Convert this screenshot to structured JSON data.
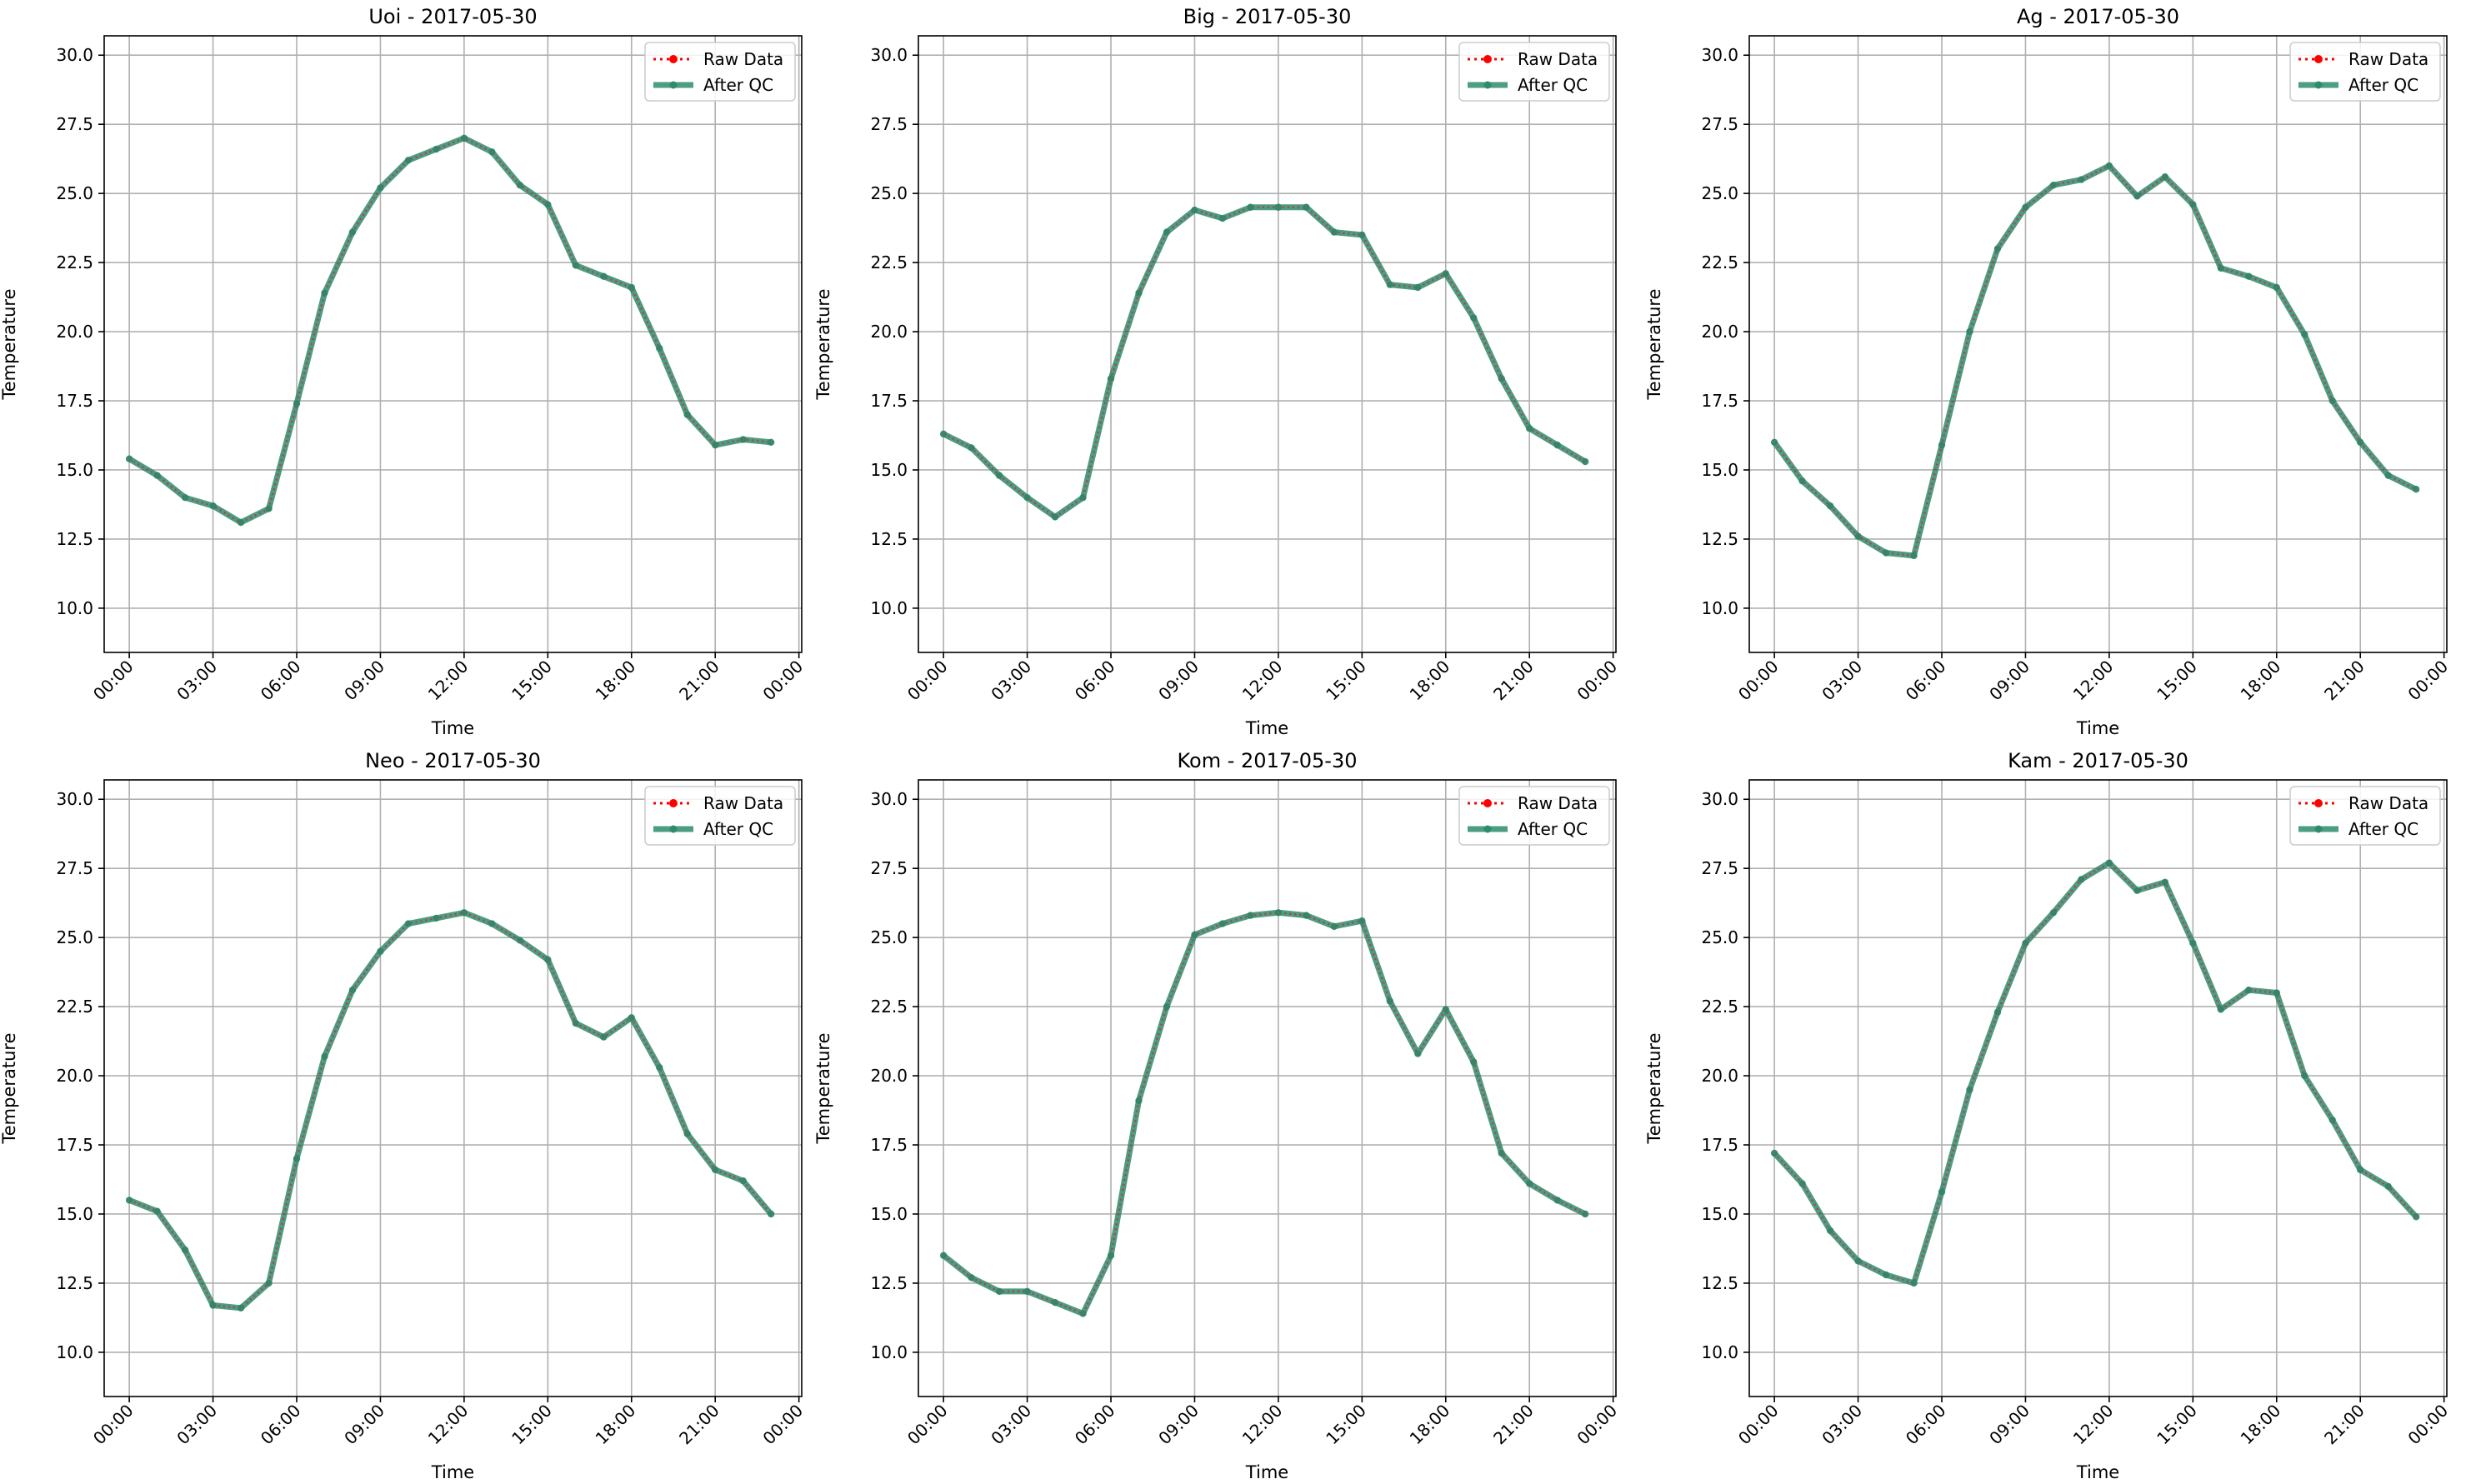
{
  "figure": {
    "background": "#ffffff"
  },
  "legend_labels": {
    "raw": "Raw Data",
    "qc": "After QC"
  },
  "colors": {
    "raw": "#ff0000",
    "qc": "#2e8b6e",
    "grid": "#b0b0b0",
    "axis": "#000000"
  },
  "chart_data": [
    {
      "type": "line",
      "title": "Uoi - 2017-05-30",
      "xlabel": "Time",
      "ylabel": "Temperature",
      "xticks": [
        "00:00",
        "03:00",
        "06:00",
        "09:00",
        "12:00",
        "15:00",
        "18:00",
        "21:00",
        "00:00"
      ],
      "yticks": [
        "10.0",
        "12.5",
        "15.0",
        "17.5",
        "20.0",
        "22.5",
        "25.0",
        "27.5",
        "30.0"
      ],
      "ylim": [
        8.4,
        30.7
      ],
      "xlim_hours": [
        -0.9,
        24.1
      ],
      "grid": true,
      "legend": "top-right",
      "x_hours": [
        0,
        1,
        2,
        3,
        4,
        5,
        6,
        7,
        8,
        9,
        10,
        11,
        12,
        13,
        14,
        15,
        16,
        17,
        18,
        19,
        20,
        21,
        22,
        23
      ],
      "series": [
        {
          "name": "Raw Data",
          "values": [
            15.4,
            14.8,
            14.0,
            13.7,
            13.1,
            13.6,
            17.4,
            21.4,
            23.6,
            25.2,
            26.2,
            26.6,
            27.0,
            26.5,
            25.3,
            24.6,
            22.4,
            22.0,
            21.6,
            19.4,
            17.0,
            15.9,
            16.1,
            16.0
          ]
        },
        {
          "name": "After QC",
          "values": [
            15.4,
            14.8,
            14.0,
            13.7,
            13.1,
            13.6,
            17.4,
            21.4,
            23.6,
            25.2,
            26.2,
            26.6,
            27.0,
            26.5,
            25.3,
            24.6,
            22.4,
            22.0,
            21.6,
            19.4,
            17.0,
            15.9,
            16.1,
            16.0
          ]
        }
      ]
    },
    {
      "type": "line",
      "title": "Big - 2017-05-30",
      "xlabel": "Time",
      "ylabel": "Temperature",
      "xticks": [
        "00:00",
        "03:00",
        "06:00",
        "09:00",
        "12:00",
        "15:00",
        "18:00",
        "21:00",
        "00:00"
      ],
      "yticks": [
        "10.0",
        "12.5",
        "15.0",
        "17.5",
        "20.0",
        "22.5",
        "25.0",
        "27.5",
        "30.0"
      ],
      "ylim": [
        8.4,
        30.7
      ],
      "xlim_hours": [
        -0.9,
        24.1
      ],
      "grid": true,
      "legend": "top-right",
      "x_hours": [
        0,
        1,
        2,
        3,
        4,
        5,
        6,
        7,
        8,
        9,
        10,
        11,
        12,
        13,
        14,
        15,
        16,
        17,
        18,
        19,
        20,
        21,
        22,
        23
      ],
      "series": [
        {
          "name": "Raw Data",
          "values": [
            16.3,
            15.8,
            14.8,
            14.0,
            13.3,
            14.0,
            18.3,
            21.4,
            23.6,
            24.4,
            24.1,
            24.5,
            24.5,
            24.5,
            23.6,
            23.5,
            21.7,
            21.6,
            22.1,
            20.5,
            18.3,
            16.5,
            15.9,
            15.3
          ]
        },
        {
          "name": "After QC",
          "values": [
            16.3,
            15.8,
            14.8,
            14.0,
            13.3,
            14.0,
            18.3,
            21.4,
            23.6,
            24.4,
            24.1,
            24.5,
            24.5,
            24.5,
            23.6,
            23.5,
            21.7,
            21.6,
            22.1,
            20.5,
            18.3,
            16.5,
            15.9,
            15.3
          ]
        }
      ]
    },
    {
      "type": "line",
      "title": "Ag - 2017-05-30",
      "xlabel": "Time",
      "ylabel": "Temperature",
      "xticks": [
        "00:00",
        "03:00",
        "06:00",
        "09:00",
        "12:00",
        "15:00",
        "18:00",
        "21:00",
        "00:00"
      ],
      "yticks": [
        "10.0",
        "12.5",
        "15.0",
        "17.5",
        "20.0",
        "22.5",
        "25.0",
        "27.5",
        "30.0"
      ],
      "ylim": [
        8.4,
        30.7
      ],
      "xlim_hours": [
        -0.9,
        24.1
      ],
      "grid": true,
      "legend": "top-right",
      "x_hours": [
        0,
        1,
        2,
        3,
        4,
        5,
        6,
        7,
        8,
        9,
        10,
        11,
        12,
        13,
        14,
        15,
        16,
        17,
        18,
        19,
        20,
        21,
        22,
        23
      ],
      "series": [
        {
          "name": "Raw Data",
          "values": [
            16.0,
            14.6,
            13.7,
            12.6,
            12.0,
            11.9,
            15.9,
            20.0,
            23.0,
            24.5,
            25.3,
            25.5,
            26.0,
            24.9,
            25.6,
            24.6,
            22.3,
            22.0,
            21.6,
            19.9,
            17.5,
            16.0,
            14.8,
            14.3
          ]
        },
        {
          "name": "After QC",
          "values": [
            16.0,
            14.6,
            13.7,
            12.6,
            12.0,
            11.9,
            15.9,
            20.0,
            23.0,
            24.5,
            25.3,
            25.5,
            26.0,
            24.9,
            25.6,
            24.6,
            22.3,
            22.0,
            21.6,
            19.9,
            17.5,
            16.0,
            14.8,
            14.3
          ]
        }
      ]
    },
    {
      "type": "line",
      "title": "Neo - 2017-05-30",
      "xlabel": "Time",
      "ylabel": "Temperature",
      "xticks": [
        "00:00",
        "03:00",
        "06:00",
        "09:00",
        "12:00",
        "15:00",
        "18:00",
        "21:00",
        "00:00"
      ],
      "yticks": [
        "10.0",
        "12.5",
        "15.0",
        "17.5",
        "20.0",
        "22.5",
        "25.0",
        "27.5",
        "30.0"
      ],
      "ylim": [
        8.4,
        30.7
      ],
      "xlim_hours": [
        -0.9,
        24.1
      ],
      "grid": true,
      "legend": "top-right",
      "x_hours": [
        0,
        1,
        2,
        3,
        4,
        5,
        6,
        7,
        8,
        9,
        10,
        11,
        12,
        13,
        14,
        15,
        16,
        17,
        18,
        19,
        20,
        21,
        22,
        23
      ],
      "series": [
        {
          "name": "Raw Data",
          "values": [
            15.5,
            15.1,
            13.7,
            11.7,
            11.6,
            12.5,
            17.0,
            20.7,
            23.1,
            24.5,
            25.5,
            25.7,
            25.9,
            25.5,
            24.9,
            24.2,
            21.9,
            21.4,
            22.1,
            20.3,
            17.9,
            16.6,
            16.2,
            15.0
          ]
        },
        {
          "name": "After QC",
          "values": [
            15.5,
            15.1,
            13.7,
            11.7,
            11.6,
            12.5,
            17.0,
            20.7,
            23.1,
            24.5,
            25.5,
            25.7,
            25.9,
            25.5,
            24.9,
            24.2,
            21.9,
            21.4,
            22.1,
            20.3,
            17.9,
            16.6,
            16.2,
            15.0
          ]
        }
      ]
    },
    {
      "type": "line",
      "title": "Kom - 2017-05-30",
      "xlabel": "Time",
      "ylabel": "Temperature",
      "xticks": [
        "00:00",
        "03:00",
        "06:00",
        "09:00",
        "12:00",
        "15:00",
        "18:00",
        "21:00",
        "00:00"
      ],
      "yticks": [
        "10.0",
        "12.5",
        "15.0",
        "17.5",
        "20.0",
        "22.5",
        "25.0",
        "27.5",
        "30.0"
      ],
      "ylim": [
        8.4,
        30.7
      ],
      "xlim_hours": [
        -0.9,
        24.1
      ],
      "grid": true,
      "legend": "top-right",
      "x_hours": [
        0,
        1,
        2,
        3,
        4,
        5,
        6,
        7,
        8,
        9,
        10,
        11,
        12,
        13,
        14,
        15,
        16,
        17,
        18,
        19,
        20,
        21,
        22,
        23
      ],
      "series": [
        {
          "name": "Raw Data",
          "values": [
            13.5,
            12.7,
            12.2,
            12.2,
            11.8,
            11.4,
            13.5,
            19.1,
            22.5,
            25.1,
            25.5,
            25.8,
            25.9,
            25.8,
            25.4,
            25.6,
            22.7,
            20.8,
            22.4,
            20.5,
            17.2,
            16.1,
            15.5,
            15.0
          ]
        },
        {
          "name": "After QC",
          "values": [
            13.5,
            12.7,
            12.2,
            12.2,
            11.8,
            11.4,
            13.5,
            19.1,
            22.5,
            25.1,
            25.5,
            25.8,
            25.9,
            25.8,
            25.4,
            25.6,
            22.7,
            20.8,
            22.4,
            20.5,
            17.2,
            16.1,
            15.5,
            15.0
          ]
        }
      ]
    },
    {
      "type": "line",
      "title": "Kam - 2017-05-30",
      "xlabel": "Time",
      "ylabel": "Temperature",
      "xticks": [
        "00:00",
        "03:00",
        "06:00",
        "09:00",
        "12:00",
        "15:00",
        "18:00",
        "21:00",
        "00:00"
      ],
      "yticks": [
        "10.0",
        "12.5",
        "15.0",
        "17.5",
        "20.0",
        "22.5",
        "25.0",
        "27.5",
        "30.0"
      ],
      "ylim": [
        8.4,
        30.7
      ],
      "xlim_hours": [
        -0.9,
        24.1
      ],
      "grid": true,
      "legend": "top-right",
      "x_hours": [
        0,
        1,
        2,
        3,
        4,
        5,
        6,
        7,
        8,
        9,
        10,
        11,
        12,
        13,
        14,
        15,
        16,
        17,
        18,
        19,
        20,
        21,
        22,
        23
      ],
      "series": [
        {
          "name": "Raw Data",
          "values": [
            17.2,
            16.1,
            14.4,
            13.3,
            12.8,
            12.5,
            15.8,
            19.5,
            22.3,
            24.8,
            25.9,
            27.1,
            27.7,
            26.7,
            27.0,
            24.8,
            22.4,
            23.1,
            23.0,
            20.0,
            18.4,
            16.6,
            16.0,
            14.9
          ]
        },
        {
          "name": "After QC",
          "values": [
            17.2,
            16.1,
            14.4,
            13.3,
            12.8,
            12.5,
            15.8,
            19.5,
            22.3,
            24.8,
            25.9,
            27.1,
            27.7,
            26.7,
            27.0,
            24.8,
            22.4,
            23.1,
            23.0,
            20.0,
            18.4,
            16.6,
            16.0,
            14.9
          ]
        }
      ]
    }
  ]
}
